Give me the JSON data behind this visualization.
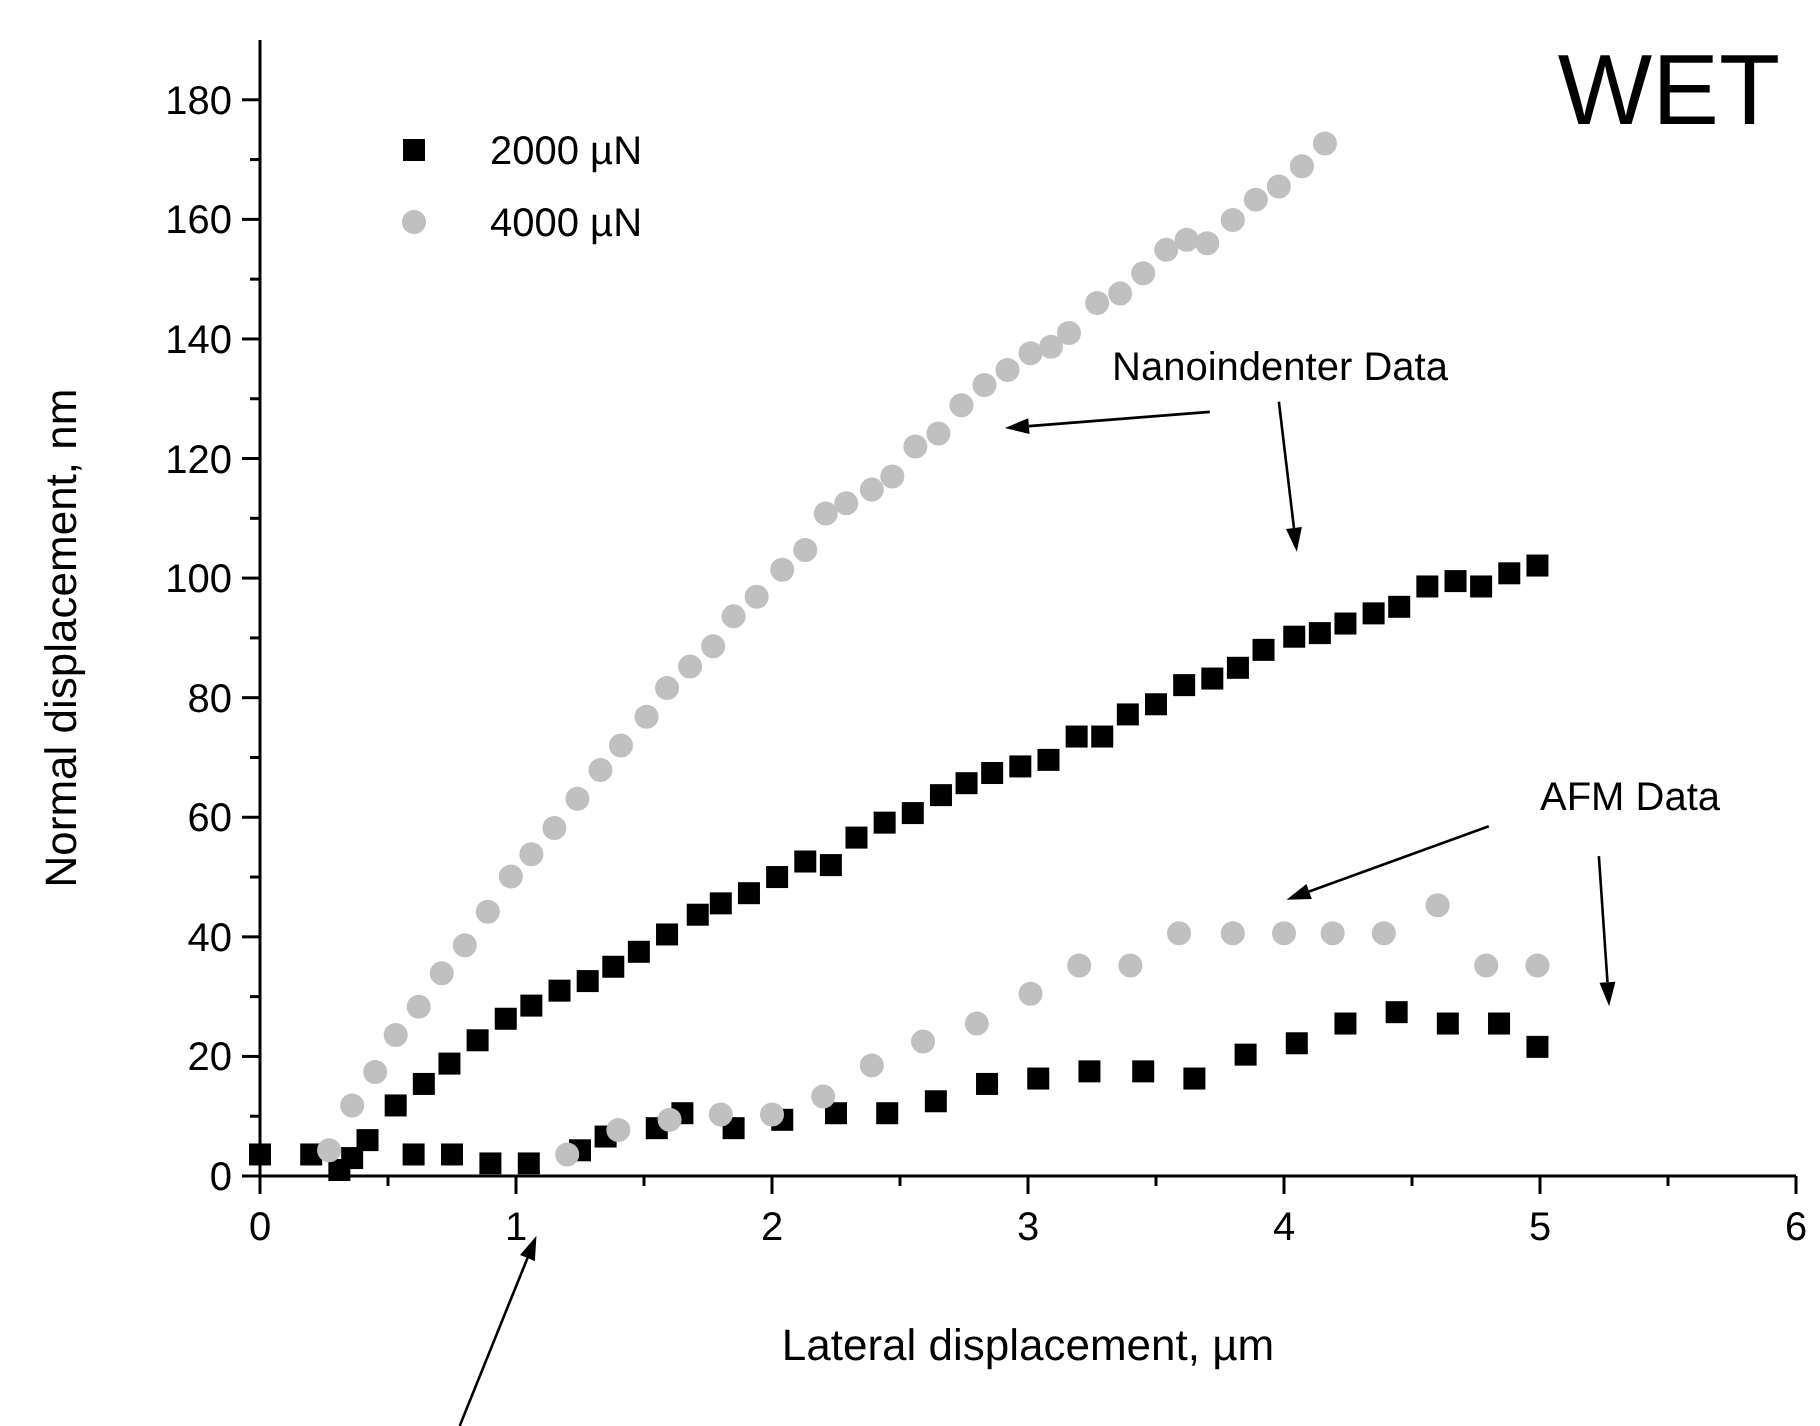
{
  "chart_data": {
    "type": "scatter",
    "title": "WET",
    "xlabel": "Lateral displacement, µm",
    "ylabel": "Normal displacement, nm",
    "xlim": [
      0,
      6
    ],
    "xticks": [
      0,
      {
        "value": 0.5,
        "label": null
      },
      1,
      {
        "value": 1.5,
        "label": null
      },
      2,
      {
        "value": 2.5,
        "label": null
      },
      3,
      {
        "value": 3.5,
        "label": null
      },
      4,
      {
        "value": 4.5,
        "label": null
      },
      5,
      {
        "value": 5.5,
        "label": null
      },
      6
    ],
    "ylim": [
      0,
      190
    ],
    "yticks": [
      0,
      {
        "value": 10,
        "label": null
      },
      20,
      {
        "value": 30,
        "label": null
      },
      40,
      {
        "value": 50,
        "label": null
      },
      60,
      {
        "value": 70,
        "label": null
      },
      80,
      {
        "value": 90,
        "label": null
      },
      100,
      {
        "value": 110,
        "label": null
      },
      120,
      {
        "value": 130,
        "label": null
      },
      140,
      {
        "value": 150,
        "label": null
      },
      160,
      {
        "value": 170,
        "label": null
      },
      180
    ],
    "grid": false,
    "legend": "top left",
    "annotations": [
      "Nanoindenter Data",
      "AFM Data"
    ],
    "series": [
      {
        "name": "2000 µN",
        "color": "#000000",
        "marker": "square",
        "x": [
          0,
          0.2,
          0.31,
          0.36,
          0.42,
          0.53,
          0.64,
          0.74,
          0.85,
          0.96,
          1.06,
          1.17,
          1.28,
          1.38,
          1.48,
          1.59,
          1.71,
          1.8,
          1.91,
          2.02,
          2.13,
          2.23,
          2.33,
          2.44,
          2.55,
          2.66,
          2.76,
          2.86,
          2.97,
          3.08,
          3.19,
          3.29,
          3.39,
          3.5,
          3.61,
          3.72,
          3.82,
          3.92,
          4.04,
          4.14,
          4.24,
          4.35,
          4.45,
          4.56,
          4.67,
          4.77,
          4.88,
          4.99
        ],
        "values": [
          3.6,
          3.6,
          1,
          3,
          6,
          11.8,
          15.4,
          18.8,
          22.7,
          26.3,
          28.5,
          31,
          32.6,
          35,
          37.5,
          40.4,
          43.7,
          45.6,
          47.3,
          50,
          52.6,
          52,
          56.6,
          59.1,
          60.7,
          63.7,
          65.7,
          67.4,
          68.5,
          69.6,
          73.5,
          73.5,
          77.2,
          78.9,
          82.1,
          83.2,
          85,
          88,
          90.2,
          90.8,
          92.4,
          94.1,
          95.2,
          98.6,
          99.5,
          98.6,
          100.8,
          102.1
        ]
      },
      {
        "name": "4000 µN",
        "color": "#c0c0c0",
        "marker": "circle",
        "x": [
          0.27,
          0.36,
          0.45,
          0.53,
          0.62,
          0.71,
          0.8,
          0.89,
          0.98,
          1.06,
          1.15,
          1.24,
          1.33,
          1.41,
          1.51,
          1.59,
          1.68,
          1.77,
          1.85,
          1.94,
          2.04,
          2.13,
          2.21,
          2.29,
          2.39,
          2.47,
          2.56,
          2.65,
          2.74,
          2.83,
          2.92,
          3.01,
          3.09,
          3.16,
          3.27,
          3.36,
          3.45,
          3.54,
          3.62,
          3.7,
          3.8,
          3.89,
          3.98,
          4.07,
          4.16
        ],
        "values": [
          4.3,
          11.8,
          17.4,
          23.6,
          28.3,
          33.9,
          38.6,
          44.2,
          50.1,
          53.8,
          58.2,
          63.1,
          67.9,
          72,
          76.8,
          81.6,
          85.2,
          88.6,
          93.6,
          96.9,
          101.4,
          104.7,
          110.8,
          112.5,
          114.8,
          117,
          122,
          124.2,
          128.9,
          132.3,
          134.8,
          137.6,
          138.7,
          141,
          146,
          147.6,
          151,
          154.9,
          156.6,
          156,
          159.9,
          163.3,
          165.5,
          168.9,
          172.7
        ]
      },
      {
        "color": "#000000",
        "marker": "square",
        "x": [
          0.6,
          0.75,
          0.9,
          1.05,
          1.25,
          1.35,
          1.55,
          1.65,
          1.85,
          2.04,
          2.25,
          2.45,
          2.64,
          2.84,
          3.04,
          3.24,
          3.45,
          3.65,
          3.85,
          4.05,
          4.24,
          4.44,
          4.64,
          4.84,
          4.99
        ],
        "values": [
          3.6,
          3.6,
          2.1,
          2.1,
          4.3,
          6.6,
          8,
          10.5,
          8,
          9.4,
          10.5,
          10.5,
          12.5,
          15.4,
          16.3,
          17.5,
          17.5,
          16.3,
          20.3,
          22.2,
          25.5,
          27.4,
          25.5,
          25.5,
          21.6
        ]
      },
      {
        "color": "#c0c0c0",
        "marker": "circle",
        "x": [
          1.2,
          1.4,
          1.6,
          1.8,
          2,
          2.2,
          2.39,
          2.59,
          2.8,
          3.01,
          3.2,
          3.4,
          3.59,
          3.8,
          4,
          4.19,
          4.39,
          4.6,
          4.79,
          4.99
        ],
        "values": [
          3.6,
          7.7,
          9.4,
          10.3,
          10.3,
          13.3,
          18.5,
          22.5,
          25.5,
          30.5,
          35.2,
          35.2,
          40.6,
          40.6,
          40.6,
          40.6,
          40.6,
          45.3,
          35.2,
          35.2
        ]
      }
    ]
  }
}
